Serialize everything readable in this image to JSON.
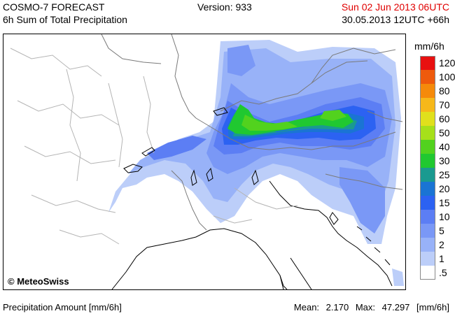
{
  "header": {
    "model": "COSMO-7 FORECAST",
    "product": "6h Sum of Total Precipitation",
    "version": "Version: 933",
    "valid_time": "Sun 02 Jun 2013 06UTC",
    "init_time": "30.05.2013 12UTC +66h"
  },
  "map": {
    "copyright": "© MeteoSwiss"
  },
  "legend": {
    "unit": "mm/6h",
    "classes": [
      {
        "label": "120",
        "color": "#e81010"
      },
      {
        "label": "100",
        "color": "#ee5a0c"
      },
      {
        "label": "80",
        "color": "#f58a0a"
      },
      {
        "label": "70",
        "color": "#f6b81a"
      },
      {
        "label": "60",
        "color": "#e0e01c"
      },
      {
        "label": "50",
        "color": "#a6e01a"
      },
      {
        "label": "40",
        "color": "#52d21e"
      },
      {
        "label": "30",
        "color": "#20c830"
      },
      {
        "label": "25",
        "color": "#1a9a90"
      },
      {
        "label": "20",
        "color": "#1a74d4"
      },
      {
        "label": "15",
        "color": "#2c62f2"
      },
      {
        "label": "10",
        "color": "#5c7ef4"
      },
      {
        "label": "5",
        "color": "#7a98f6"
      },
      {
        "label": "2",
        "color": "#98b2f8"
      },
      {
        "label": "1",
        "color": "#bccef9"
      },
      {
        "label": ".5",
        "color": "#ffffff"
      }
    ]
  },
  "footer": {
    "left": "Precipitation Amount [mm/6h]",
    "mean_label": "Mean:",
    "mean_value": "2.170",
    "max_label": "Max:",
    "max_value": "47.297",
    "unit": "[mm/6h]"
  }
}
